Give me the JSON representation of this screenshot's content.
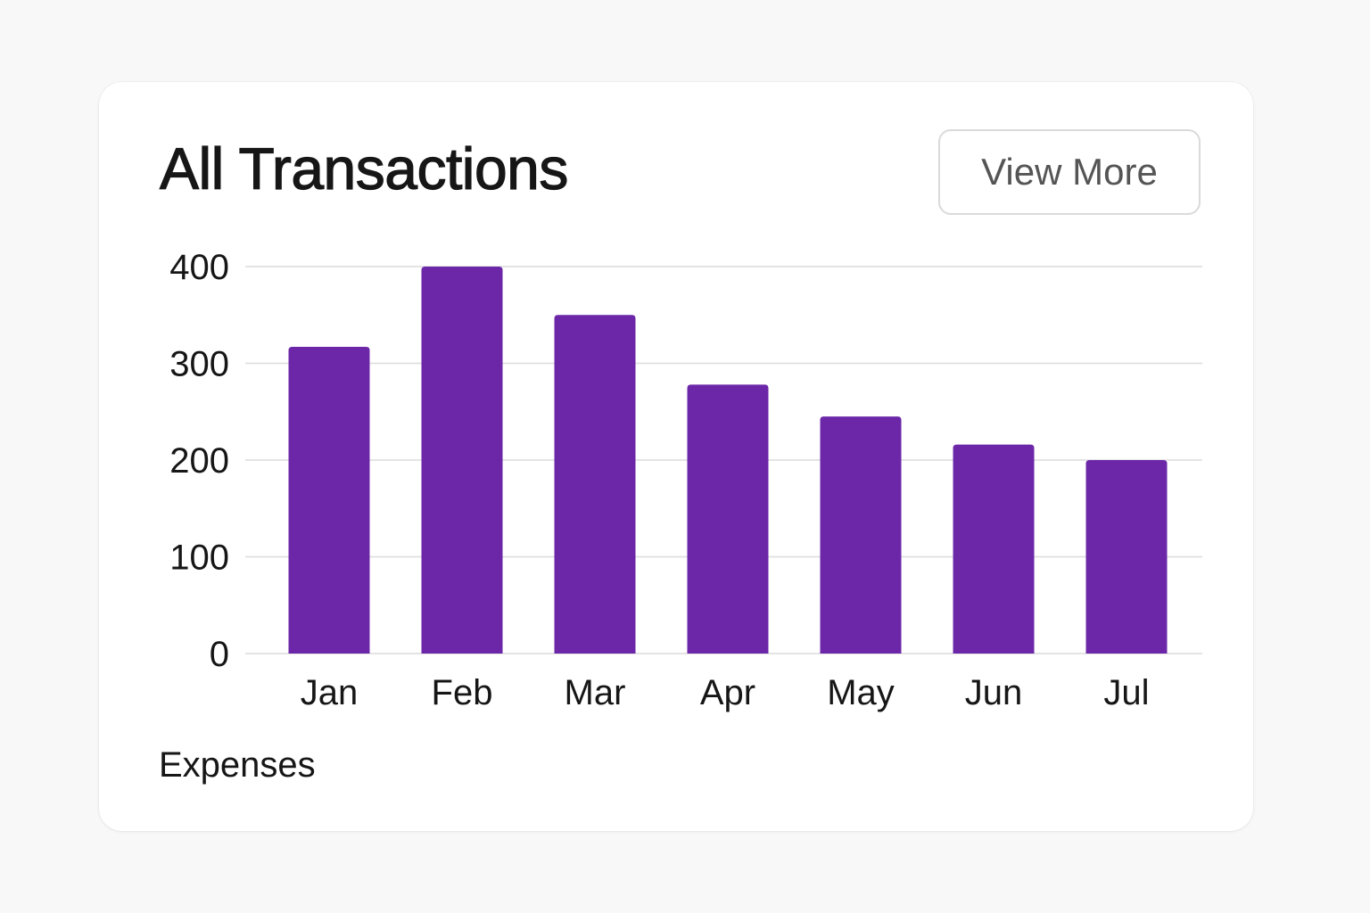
{
  "card": {
    "title": "All Transactions",
    "view_more_label": "View More"
  },
  "chart_data": {
    "type": "bar",
    "categories": [
      "Jan",
      "Feb",
      "Mar",
      "Apr",
      "May",
      "Jun",
      "Jul"
    ],
    "series": [
      {
        "name": "Expenses",
        "values": [
          317,
          400,
          350,
          278,
          245,
          216,
          200
        ],
        "color": "#6c27a9"
      }
    ],
    "y_ticks": [
      0,
      100,
      200,
      300,
      400
    ],
    "ylim": [
      0,
      400
    ],
    "grid": true,
    "legend": "bottom-left",
    "title": "",
    "xlabel": "",
    "ylabel": ""
  }
}
